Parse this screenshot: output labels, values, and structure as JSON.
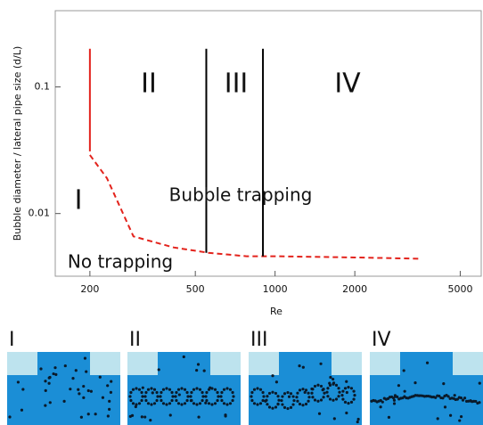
{
  "chart_data": {
    "type": "line",
    "xlabel": "Re",
    "ylabel": "Bubble diameter / lateral pipe size (d/L)",
    "xscale": "log",
    "yscale": "log",
    "xlim": [
      148,
      6000
    ],
    "ylim": [
      0.0032,
      0.4
    ],
    "xticks": [
      200,
      500,
      1000,
      2000,
      5000
    ],
    "yticks": [
      0.01,
      0.1
    ],
    "series": [
      {
        "color": "#e3231c",
        "style": "solid",
        "x": [
          200,
          200
        ],
        "values": [
          0.2,
          0.031
        ]
      },
      {
        "color": "#e3231c",
        "style": "dashed",
        "x": [
          200,
          232,
          292,
          414,
          560,
          780,
          1000,
          2000,
          3500
        ],
        "values": [
          0.029,
          0.019,
          0.0066,
          0.0054,
          0.0049,
          0.0046,
          0.0046,
          0.0045,
          0.0044
        ]
      },
      {
        "color": "#000000",
        "style": "solid",
        "x": [
          550,
          550
        ],
        "values": [
          0.2,
          0.0049
        ]
      },
      {
        "color": "#000000",
        "style": "solid",
        "x": [
          900,
          900
        ],
        "values": [
          0.2,
          0.0046
        ]
      }
    ],
    "annotations": [
      "I",
      "II",
      "III",
      "IV",
      "Bubble trapping",
      "No trapping"
    ]
  },
  "panels": [
    "I",
    "II",
    "III",
    "IV"
  ]
}
